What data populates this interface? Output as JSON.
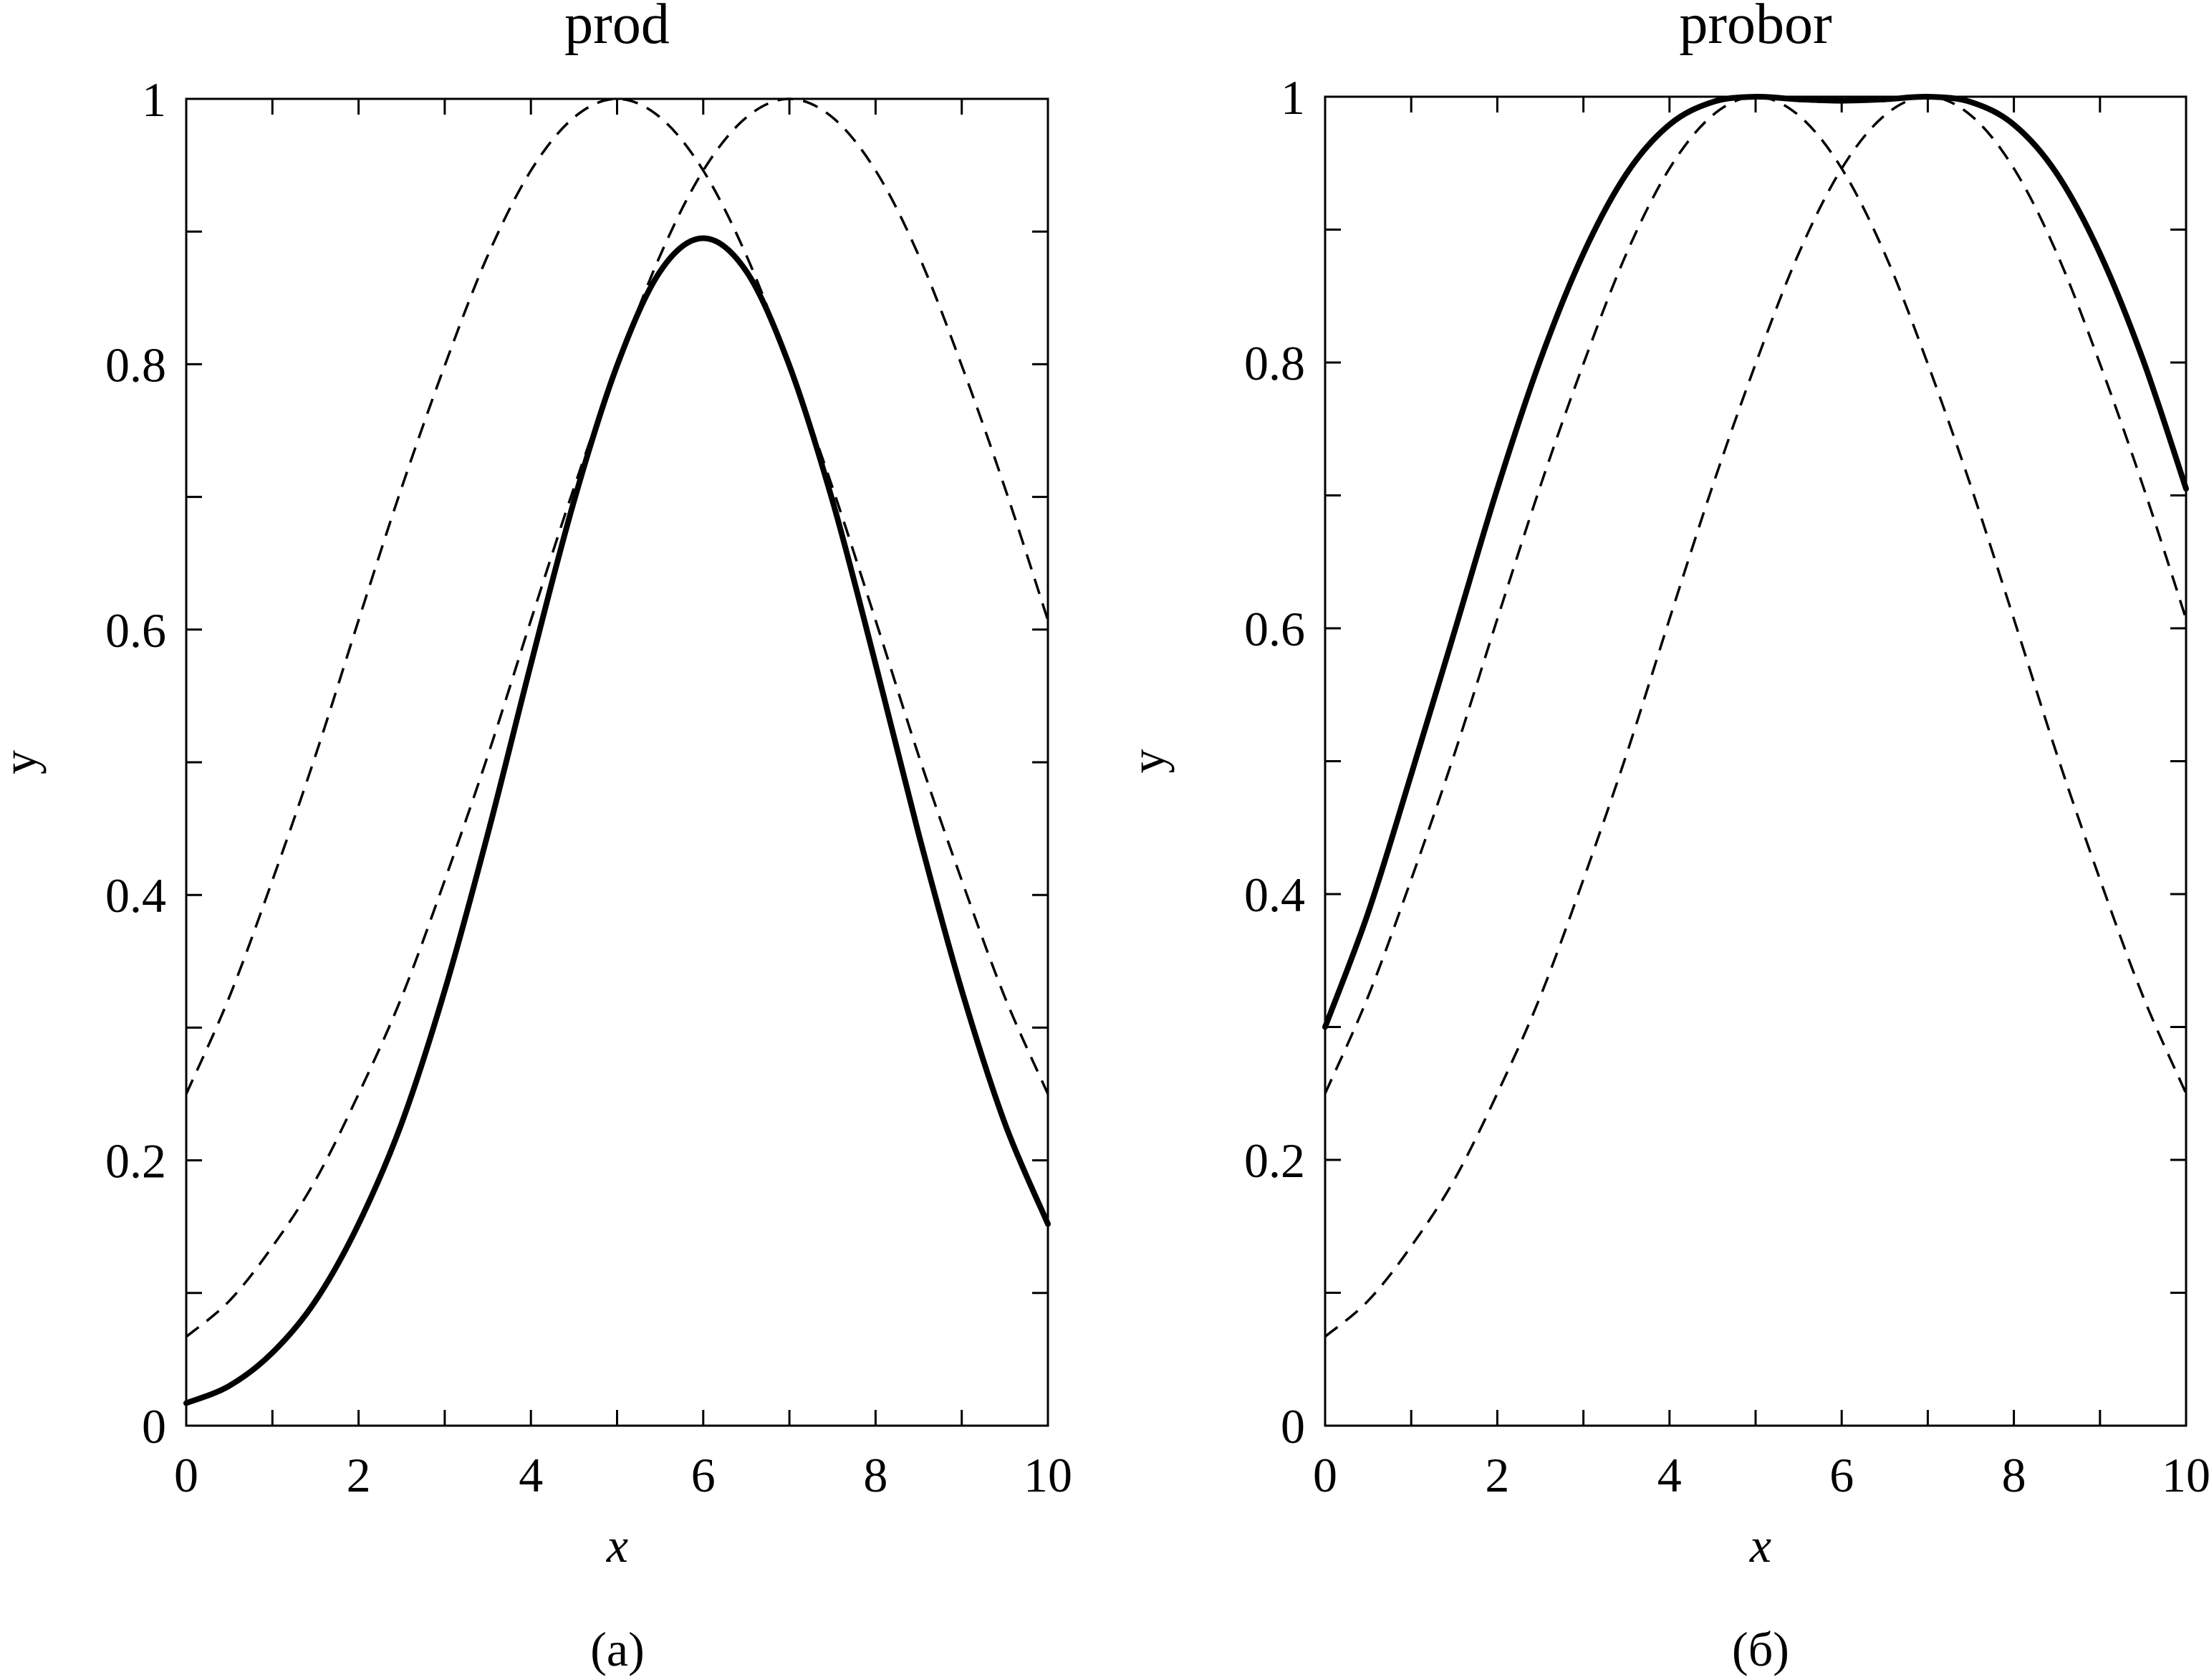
{
  "chart_data": [
    {
      "type": "line",
      "title": "prod",
      "caption": "(a)",
      "xlabel": "x",
      "ylabel": "y",
      "xlim": [
        0,
        10
      ],
      "ylim": [
        0,
        1
      ],
      "xticks": [
        0,
        2,
        4,
        6,
        8,
        10
      ],
      "xtick_labels": [
        "0",
        "2",
        "4",
        "6",
        "8",
        "10"
      ],
      "yticks": [
        0,
        0.2,
        0.4,
        0.6,
        0.8,
        1
      ],
      "ytick_labels": [
        "0",
        "0.2",
        "0.4",
        "0.6",
        "0.8",
        "1"
      ],
      "grid": false,
      "series": [
        {
          "style": "dashed",
          "x": [
            0,
            0.5,
            1,
            1.5,
            2,
            2.5,
            3,
            3.5,
            4,
            4.5,
            5,
            5.5,
            6,
            6.5,
            7,
            7.5,
            8,
            8.5,
            9,
            9.5,
            10
          ],
          "y": [
            0.25,
            0.323,
            0.411,
            0.505,
            0.607,
            0.707,
            0.799,
            0.882,
            0.946,
            0.986,
            1.0,
            0.986,
            0.946,
            0.882,
            0.799,
            0.707,
            0.607,
            0.505,
            0.411,
            0.323,
            0.25
          ]
        },
        {
          "style": "dashed",
          "x": [
            0,
            0.5,
            1,
            1.5,
            2,
            2.5,
            3,
            3.5,
            4,
            4.5,
            5,
            5.5,
            6,
            6.5,
            7,
            7.5,
            8,
            8.5,
            9,
            9.5,
            10
          ],
          "y": [
            0.067,
            0.094,
            0.135,
            0.185,
            0.25,
            0.323,
            0.411,
            0.505,
            0.607,
            0.707,
            0.799,
            0.882,
            0.946,
            0.986,
            1.0,
            0.986,
            0.946,
            0.882,
            0.799,
            0.707,
            0.607
          ]
        },
        {
          "style": "solid",
          "x": [
            0,
            0.5,
            1,
            1.5,
            2,
            2.5,
            3,
            3.5,
            4,
            4.5,
            5,
            5.5,
            6,
            6.5,
            7,
            7.5,
            8,
            8.5,
            9,
            9.5,
            10
          ],
          "y": [
            0.017,
            0.03,
            0.055,
            0.094,
            0.152,
            0.228,
            0.328,
            0.446,
            0.574,
            0.697,
            0.799,
            0.87,
            0.895,
            0.87,
            0.799,
            0.697,
            0.574,
            0.446,
            0.328,
            0.228,
            0.152
          ]
        }
      ]
    },
    {
      "type": "line",
      "title": "probor",
      "caption": "(б)",
      "xlabel": "x",
      "ylabel": "y",
      "xlim": [
        0,
        10
      ],
      "ylim": [
        0,
        1
      ],
      "xticks": [
        0,
        2,
        4,
        6,
        8,
        10
      ],
      "xtick_labels": [
        "0",
        "2",
        "4",
        "6",
        "8",
        "10"
      ],
      "yticks": [
        0,
        0.2,
        0.4,
        0.6,
        0.8,
        1
      ],
      "ytick_labels": [
        "0",
        "0.2",
        "0.4",
        "0.6",
        "0.8",
        "1"
      ],
      "grid": false,
      "series": [
        {
          "style": "dashed",
          "x": [
            0,
            0.5,
            1,
            1.5,
            2,
            2.5,
            3,
            3.5,
            4,
            4.5,
            5,
            5.5,
            6,
            6.5,
            7,
            7.5,
            8,
            8.5,
            9,
            9.5,
            10
          ],
          "y": [
            0.25,
            0.323,
            0.411,
            0.505,
            0.607,
            0.707,
            0.799,
            0.882,
            0.946,
            0.986,
            1.0,
            0.986,
            0.946,
            0.882,
            0.799,
            0.707,
            0.607,
            0.505,
            0.411,
            0.323,
            0.25
          ]
        },
        {
          "style": "dashed",
          "x": [
            0,
            0.5,
            1,
            1.5,
            2,
            2.5,
            3,
            3.5,
            4,
            4.5,
            5,
            5.5,
            6,
            6.5,
            7,
            7.5,
            8,
            8.5,
            9,
            9.5,
            10
          ],
          "y": [
            0.067,
            0.094,
            0.135,
            0.185,
            0.25,
            0.323,
            0.411,
            0.505,
            0.607,
            0.707,
            0.799,
            0.882,
            0.946,
            0.986,
            1.0,
            0.986,
            0.946,
            0.882,
            0.799,
            0.707,
            0.607
          ]
        },
        {
          "style": "solid",
          "x": [
            0,
            0.5,
            1,
            1.5,
            2,
            2.5,
            3,
            3.5,
            4,
            4.5,
            5,
            5.5,
            6,
            6.5,
            7,
            7.5,
            8,
            8.5,
            9,
            9.5,
            10
          ],
          "y": [
            0.3,
            0.386,
            0.49,
            0.597,
            0.705,
            0.802,
            0.882,
            0.942,
            0.979,
            0.996,
            1.0,
            0.998,
            0.997,
            0.998,
            1.0,
            0.996,
            0.979,
            0.942,
            0.882,
            0.802,
            0.705
          ]
        }
      ]
    }
  ]
}
